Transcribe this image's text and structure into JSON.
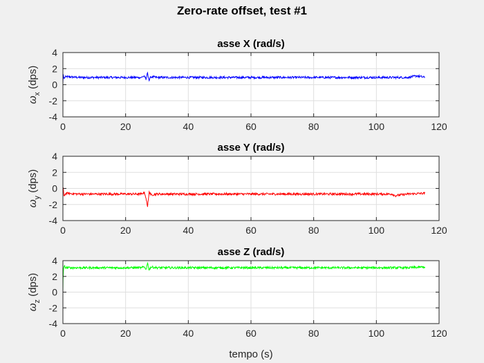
{
  "figure": {
    "title": "Zero-rate offset, test #1",
    "xlabel": "tempo (s)"
  },
  "chart_data": [
    {
      "type": "line",
      "title": "asse X (rad/s)",
      "ylabel_symbol": "ω",
      "ylabel_sub": "x",
      "ylabel_unit": " (dps)",
      "xlim": [
        0,
        120
      ],
      "ylim": [
        -4,
        4
      ],
      "xticks": [
        0,
        20,
        40,
        60,
        80,
        100,
        120
      ],
      "yticks": [
        -4,
        -2,
        0,
        2,
        4
      ],
      "grid": true,
      "color": "#0000ff",
      "series": [
        {
          "x": [
            0,
            0.1,
            0.3,
            1,
            5,
            10,
            20,
            25,
            26,
            26.5,
            27,
            27.5,
            28,
            30,
            40,
            50,
            60,
            70,
            80,
            90,
            100,
            105,
            110,
            113,
            115.5
          ],
          "y": [
            0.2,
            1.3,
            0.8,
            1.0,
            0.9,
            0.9,
            0.9,
            0.9,
            1.1,
            0.6,
            1.5,
            0.5,
            1.0,
            0.9,
            0.9,
            0.9,
            0.9,
            0.9,
            0.9,
            0.9,
            0.9,
            0.9,
            0.9,
            1.1,
            0.9
          ]
        }
      ]
    },
    {
      "type": "line",
      "title": "asse Y (rad/s)",
      "ylabel_symbol": "ω",
      "ylabel_sub": "y",
      "ylabel_unit": " (dps)",
      "xlim": [
        0,
        120
      ],
      "ylim": [
        -4,
        4
      ],
      "xticks": [
        0,
        20,
        40,
        60,
        80,
        100,
        120
      ],
      "yticks": [
        -4,
        -2,
        0,
        2,
        4
      ],
      "grid": true,
      "color": "#ff0000",
      "series": [
        {
          "x": [
            0,
            0.1,
            0.3,
            1,
            5,
            10,
            20,
            25,
            26,
            26.5,
            27,
            27.5,
            28,
            30,
            40,
            50,
            60,
            70,
            80,
            90,
            100,
            105,
            106,
            110,
            115.5
          ],
          "y": [
            0.0,
            0.1,
            -0.9,
            -0.6,
            -0.7,
            -0.7,
            -0.7,
            -0.7,
            -0.5,
            -1.2,
            -2.3,
            -0.4,
            -0.8,
            -0.7,
            -0.7,
            -0.7,
            -0.7,
            -0.7,
            -0.7,
            -0.7,
            -0.7,
            -0.7,
            -0.9,
            -0.7,
            -0.6
          ]
        }
      ]
    },
    {
      "type": "line",
      "title": "asse Z (rad/s)",
      "ylabel_symbol": "ω",
      "ylabel_sub": "z",
      "ylabel_unit": " (dps)",
      "xlim": [
        0,
        120
      ],
      "ylim": [
        -4,
        4
      ],
      "xticks": [
        0,
        20,
        40,
        60,
        80,
        100,
        120
      ],
      "yticks": [
        -4,
        -2,
        0,
        2,
        4
      ],
      "grid": true,
      "color": "#00ff00",
      "series": [
        {
          "x": [
            0,
            0.05,
            0.2,
            0.4,
            1,
            5,
            10,
            20,
            25,
            26,
            26.5,
            27,
            27.5,
            28,
            30,
            40,
            50,
            60,
            70,
            80,
            90,
            100,
            110,
            115.5
          ],
          "y": [
            0.0,
            1.5,
            3.0,
            3.3,
            3.1,
            3.1,
            3.1,
            3.1,
            3.1,
            3.2,
            2.9,
            3.7,
            2.8,
            3.2,
            3.1,
            3.1,
            3.1,
            3.1,
            3.1,
            3.1,
            3.1,
            3.1,
            3.1,
            3.2
          ]
        }
      ]
    }
  ]
}
